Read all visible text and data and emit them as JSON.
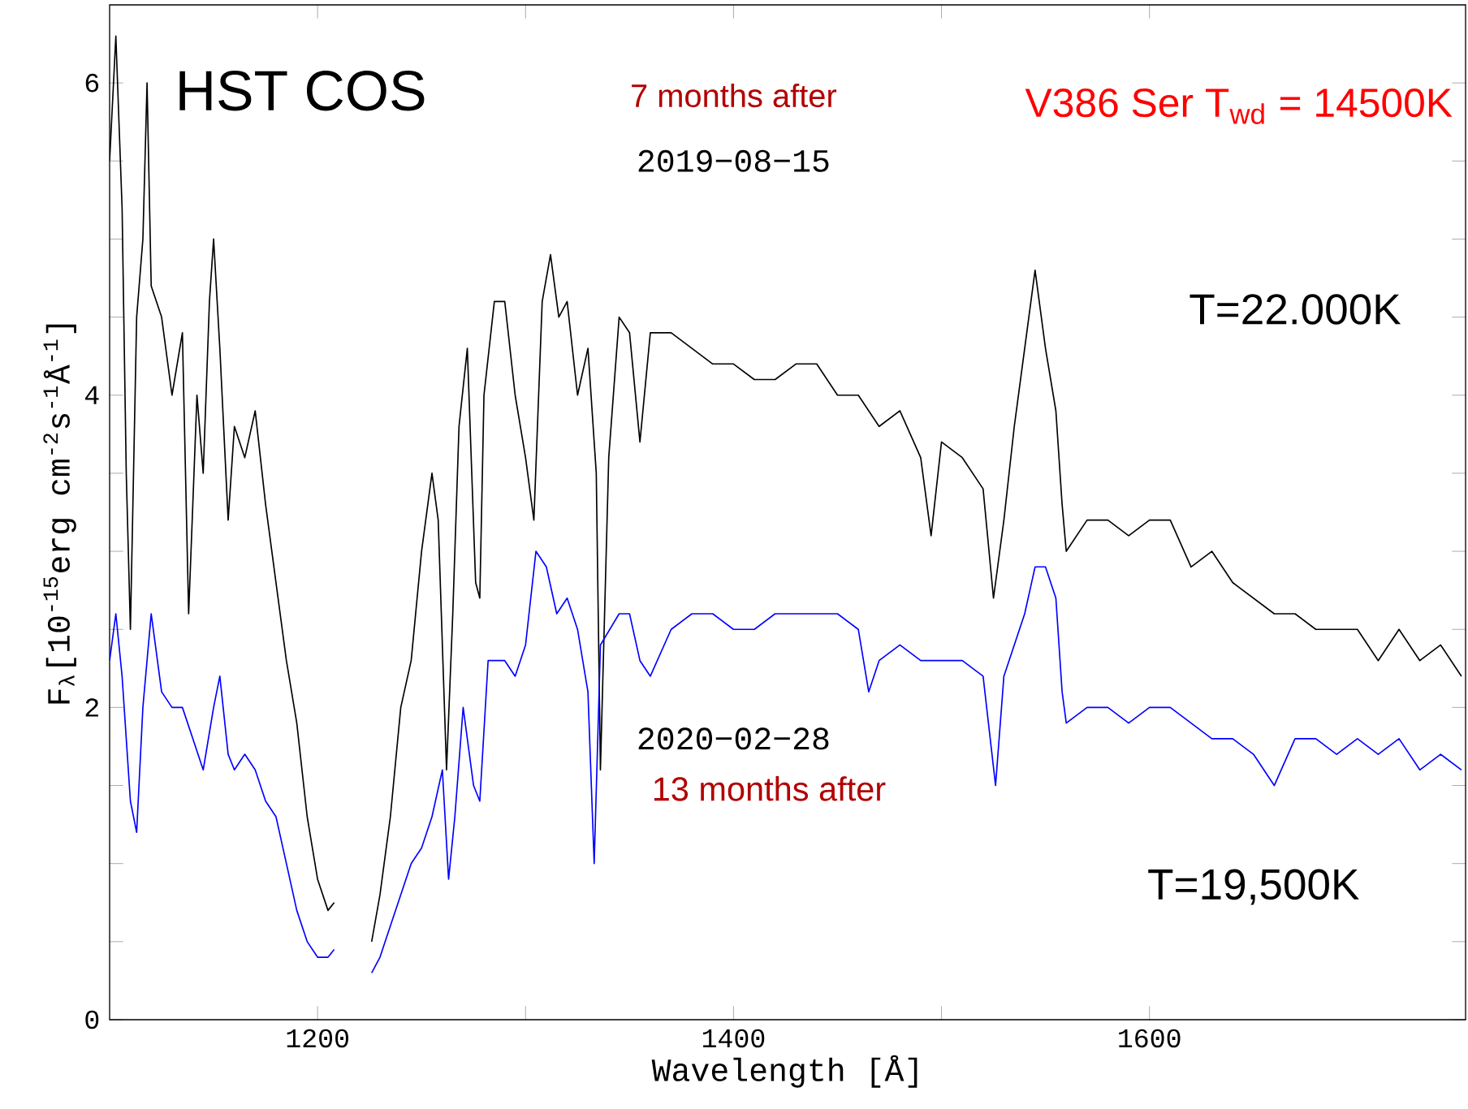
{
  "chart_data": {
    "type": "line",
    "xlabel": "Wavelength [Å]",
    "ylabel": "F$_{λ}$[10$^{-15}$erg cm$^{-2}$s$^{-1}$Å$^{-1}$]",
    "xlim": [
      1100,
      1752
    ],
    "ylim": [
      0,
      6.5
    ],
    "xticks": [
      1200,
      1400,
      1600
    ],
    "yticks": [
      0,
      2,
      4,
      6
    ],
    "series": [
      {
        "color": "#000000",
        "x": [
          1100,
          1103,
          1106,
          1108,
          1110,
          1113,
          1116,
          1118,
          1120,
          1125,
          1130,
          1135,
          1138,
          1142,
          1145,
          1148,
          1150,
          1153,
          1157,
          1160,
          1165,
          1170,
          1175,
          1180,
          1185,
          1190,
          1195,
          1200,
          1205,
          1208,
          1215,
          1226,
          1230,
          1235,
          1240,
          1245,
          1250,
          1255,
          1258,
          1262,
          1265,
          1268,
          1272,
          1276,
          1278,
          1280,
          1285,
          1290,
          1295,
          1300,
          1304,
          1308,
          1312,
          1316,
          1320,
          1325,
          1330,
          1334,
          1336,
          1340,
          1345,
          1350,
          1355,
          1360,
          1370,
          1380,
          1390,
          1400,
          1410,
          1420,
          1430,
          1440,
          1450,
          1460,
          1470,
          1480,
          1490,
          1495,
          1500,
          1510,
          1520,
          1525,
          1530,
          1535,
          1540,
          1545,
          1550,
          1555,
          1558,
          1560,
          1570,
          1580,
          1590,
          1600,
          1610,
          1620,
          1630,
          1640,
          1650,
          1660,
          1670,
          1680,
          1690,
          1700,
          1710,
          1720,
          1730,
          1740,
          1750
        ],
        "values": [
          5.5,
          6.3,
          5.2,
          3.5,
          2.5,
          4.5,
          5.0,
          6.0,
          4.7,
          4.5,
          4.0,
          4.4,
          2.6,
          4.0,
          3.5,
          4.6,
          5.0,
          4.3,
          3.2,
          3.8,
          3.6,
          3.9,
          3.3,
          2.8,
          2.3,
          1.9,
          1.3,
          0.9,
          0.7,
          0.75,
          null,
          0.5,
          0.8,
          1.3,
          2.0,
          2.3,
          3.0,
          3.5,
          3.2,
          1.6,
          2.6,
          3.8,
          4.3,
          2.8,
          2.7,
          4.0,
          4.6,
          4.6,
          4.0,
          3.6,
          3.2,
          4.6,
          4.9,
          4.5,
          4.6,
          4.0,
          4.3,
          3.5,
          1.6,
          3.6,
          4.5,
          4.4,
          3.7,
          4.4,
          4.4,
          4.3,
          4.2,
          4.2,
          4.1,
          4.1,
          4.2,
          4.2,
          4.0,
          4.0,
          3.8,
          3.9,
          3.6,
          3.1,
          3.7,
          3.6,
          3.4,
          2.7,
          3.2,
          3.8,
          4.3,
          4.8,
          4.3,
          3.9,
          3.3,
          3.0,
          3.2,
          3.2,
          3.1,
          3.2,
          3.2,
          2.9,
          3.0,
          2.8,
          2.7,
          2.6,
          2.6,
          2.5,
          2.5,
          2.5,
          2.3,
          2.5,
          2.3,
          2.4,
          2.2
        ]
      },
      {
        "color": "#0000ff",
        "x": [
          1100,
          1103,
          1106,
          1110,
          1113,
          1116,
          1120,
          1125,
          1130,
          1135,
          1140,
          1145,
          1150,
          1153,
          1157,
          1160,
          1165,
          1170,
          1175,
          1180,
          1185,
          1190,
          1195,
          1200,
          1205,
          1208,
          1215,
          1226,
          1230,
          1235,
          1240,
          1245,
          1250,
          1255,
          1260,
          1263,
          1266,
          1270,
          1275,
          1278,
          1282,
          1290,
          1295,
          1300,
          1305,
          1310,
          1315,
          1320,
          1325,
          1330,
          1333,
          1336,
          1345,
          1350,
          1355,
          1360,
          1370,
          1380,
          1390,
          1400,
          1410,
          1420,
          1430,
          1440,
          1450,
          1460,
          1465,
          1470,
          1480,
          1490,
          1500,
          1510,
          1520,
          1526,
          1530,
          1540,
          1545,
          1550,
          1555,
          1558,
          1560,
          1570,
          1580,
          1590,
          1600,
          1610,
          1620,
          1630,
          1640,
          1650,
          1660,
          1670,
          1680,
          1690,
          1700,
          1710,
          1720,
          1730,
          1740,
          1750
        ],
        "values": [
          2.3,
          2.6,
          2.2,
          1.4,
          1.2,
          2.0,
          2.6,
          2.1,
          2.0,
          2.0,
          1.8,
          1.6,
          2.0,
          2.2,
          1.7,
          1.6,
          1.7,
          1.6,
          1.4,
          1.3,
          1.0,
          0.7,
          0.5,
          0.4,
          0.4,
          0.45,
          null,
          0.3,
          0.4,
          0.6,
          0.8,
          1.0,
          1.1,
          1.3,
          1.6,
          0.9,
          1.3,
          2.0,
          1.5,
          1.4,
          2.3,
          2.3,
          2.2,
          2.4,
          3.0,
          2.9,
          2.6,
          2.7,
          2.5,
          2.1,
          1.0,
          2.4,
          2.6,
          2.6,
          2.3,
          2.2,
          2.5,
          2.6,
          2.6,
          2.5,
          2.5,
          2.6,
          2.6,
          2.6,
          2.6,
          2.5,
          2.1,
          2.3,
          2.4,
          2.3,
          2.3,
          2.3,
          2.2,
          1.5,
          2.2,
          2.6,
          2.9,
          2.9,
          2.7,
          2.1,
          1.9,
          2.0,
          2.0,
          1.9,
          2.0,
          2.0,
          1.9,
          1.8,
          1.8,
          1.7,
          1.5,
          1.8,
          1.8,
          1.7,
          1.8,
          1.7,
          1.8,
          1.6,
          1.7,
          1.6
        ]
      }
    ],
    "annotations": [
      "HST COS",
      "7 months after",
      "2019−08−15",
      "V386 Ser T$_{wd}$ = 14500K",
      "T=22.000K",
      "2020−02−28",
      "13 months after",
      "T=19,500K"
    ]
  }
}
